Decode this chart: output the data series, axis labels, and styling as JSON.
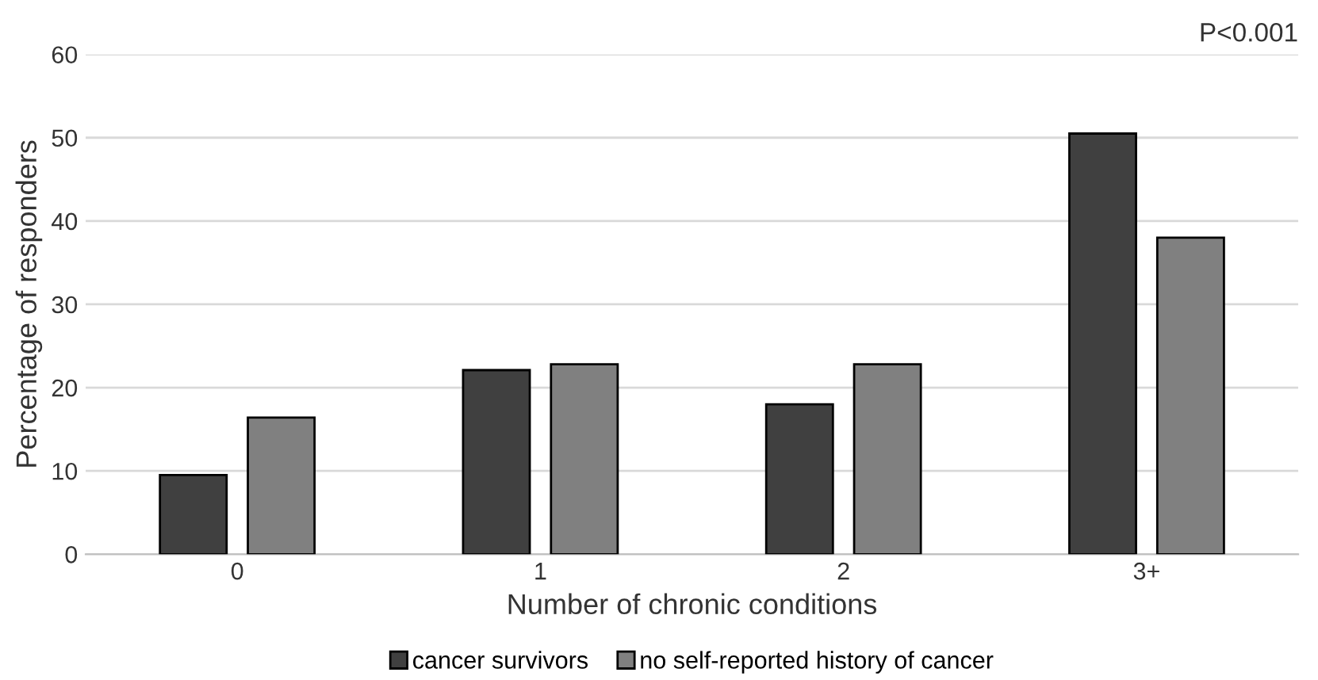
{
  "chart_data": {
    "type": "bar",
    "xlabel": "Number of chronic conditions",
    "ylabel": "Percentage of responders",
    "categories": [
      "0",
      "1",
      "2",
      "3+"
    ],
    "series": [
      {
        "name": "cancer survivors",
        "color": "#404040",
        "values": [
          9.5,
          22.1,
          18.0,
          50.5
        ]
      },
      {
        "name": "no self-reported history of cancer",
        "color": "#808080",
        "values": [
          16.4,
          22.8,
          22.8,
          38.0
        ]
      }
    ],
    "ylim": [
      0,
      60
    ],
    "yticks": [
      0,
      10,
      20,
      30,
      40,
      50,
      60
    ],
    "grid": "y",
    "legend": "bottom",
    "annotations": [
      "P<0.001"
    ]
  }
}
